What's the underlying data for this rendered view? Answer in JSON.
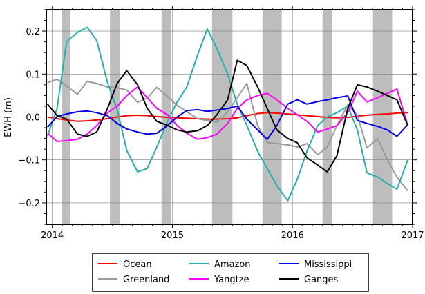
{
  "chart_data": {
    "type": "line",
    "title": "",
    "xlabel": "",
    "ylabel": "EWH (m)",
    "xlim": [
      2013.95,
      2017.0
    ],
    "ylim": [
      -0.25,
      0.25
    ],
    "x_ticks": [
      2014,
      2015,
      2016,
      2017
    ],
    "x_tick_labels": [
      "2014",
      "2015",
      "2016",
      "2017"
    ],
    "y_ticks": [
      -0.2,
      -0.1,
      0.0,
      0.1,
      0.2
    ],
    "y_tick_labels": [
      "−0.2",
      "−0.1",
      "0.0",
      "0.1",
      "0.2"
    ],
    "grid": true,
    "legend_position": "bottom",
    "shaded_intervals": [
      [
        2014.08,
        2014.15
      ],
      [
        2014.48,
        2014.56
      ],
      [
        2014.91,
        2014.99
      ],
      [
        2015.33,
        2015.5
      ],
      [
        2015.75,
        2015.91
      ],
      [
        2016.25,
        2016.33
      ],
      [
        2016.67,
        2016.83
      ]
    ],
    "series": [
      {
        "name": "Ocean",
        "color": "#ff0000",
        "x": [
          2013.96,
          2014.04,
          2014.12,
          2014.21,
          2014.29,
          2014.37,
          2014.46,
          2014.54,
          2014.62,
          2014.71,
          2014.79,
          2014.87,
          2014.96,
          2015.04,
          2015.12,
          2015.21,
          2015.29,
          2015.37,
          2015.46,
          2015.54,
          2015.62,
          2015.71,
          2015.79,
          2015.87,
          2015.96,
          2016.04,
          2016.12,
          2016.21,
          2016.29,
          2016.37,
          2016.46,
          2016.54,
          2016.62,
          2016.71,
          2016.79,
          2016.87,
          2016.96
        ],
        "y": [
          0.0,
          -0.004,
          -0.007,
          -0.01,
          -0.009,
          -0.007,
          -0.004,
          0.0,
          0.003,
          0.004,
          0.003,
          0.001,
          -0.001,
          -0.002,
          -0.003,
          -0.004,
          -0.005,
          -0.005,
          -0.004,
          -0.002,
          0.003,
          0.008,
          0.01,
          0.009,
          0.007,
          0.005,
          0.003,
          0.001,
          -0.001,
          -0.002,
          -0.001,
          0.002,
          0.004,
          0.006,
          0.007,
          0.009,
          0.01
        ]
      },
      {
        "name": "Greenland",
        "color": "#999999",
        "x": [
          2013.96,
          2014.04,
          2014.12,
          2014.21,
          2014.29,
          2014.37,
          2014.46,
          2014.54,
          2014.62,
          2014.71,
          2014.79,
          2014.87,
          2014.96,
          2015.04,
          2015.12,
          2015.21,
          2015.29,
          2015.37,
          2015.46,
          2015.54,
          2015.62,
          2015.71,
          2015.79,
          2015.87,
          2015.96,
          2016.04,
          2016.12,
          2016.21,
          2016.29,
          2016.37,
          2016.46,
          2016.54,
          2016.62,
          2016.71,
          2016.79,
          2016.87,
          2016.96
        ],
        "y": [
          0.08,
          0.088,
          0.072,
          0.053,
          0.083,
          0.078,
          0.07,
          0.068,
          0.063,
          0.034,
          0.044,
          0.069,
          0.048,
          0.027,
          0.012,
          -0.004,
          -0.008,
          -0.012,
          0.012,
          0.045,
          0.078,
          -0.02,
          -0.06,
          -0.062,
          -0.065,
          -0.07,
          -0.062,
          -0.088,
          -0.07,
          -0.02,
          0.028,
          0.005,
          -0.072,
          -0.05,
          -0.1,
          -0.14,
          -0.172
        ]
      },
      {
        "name": "Amazon",
        "color": "#20b2aa",
        "x": [
          2013.96,
          2014.04,
          2014.12,
          2014.21,
          2014.29,
          2014.37,
          2014.46,
          2014.54,
          2014.62,
          2014.71,
          2014.79,
          2014.87,
          2014.96,
          2015.04,
          2015.12,
          2015.21,
          2015.29,
          2015.37,
          2015.46,
          2015.54,
          2015.62,
          2015.71,
          2015.79,
          2015.87,
          2015.96,
          2016.04,
          2016.12,
          2016.21,
          2016.29,
          2016.37,
          2016.46,
          2016.54,
          2016.62,
          2016.71,
          2016.79,
          2016.87,
          2016.96
        ],
        "y": [
          -0.045,
          0.02,
          0.176,
          0.197,
          0.209,
          0.178,
          0.08,
          0.018,
          -0.078,
          -0.128,
          -0.12,
          -0.07,
          -0.01,
          0.035,
          0.07,
          0.145,
          0.205,
          0.16,
          0.1,
          0.03,
          -0.02,
          -0.08,
          -0.12,
          -0.16,
          -0.195,
          -0.145,
          -0.08,
          -0.02,
          0.0,
          0.01,
          0.025,
          -0.03,
          -0.13,
          -0.14,
          -0.155,
          -0.168,
          -0.1
        ]
      },
      {
        "name": "Yangtze",
        "color": "#ff00ff",
        "x": [
          2013.96,
          2014.04,
          2014.12,
          2014.21,
          2014.29,
          2014.37,
          2014.46,
          2014.54,
          2014.62,
          2014.71,
          2014.79,
          2014.87,
          2014.96,
          2015.04,
          2015.12,
          2015.21,
          2015.29,
          2015.37,
          2015.46,
          2015.54,
          2015.62,
          2015.71,
          2015.79,
          2015.87,
          2015.96,
          2016.04,
          2016.12,
          2016.21,
          2016.29,
          2016.37,
          2016.46,
          2016.54,
          2016.62,
          2016.71,
          2016.79,
          2016.87,
          2016.96
        ],
        "y": [
          -0.038,
          -0.057,
          -0.055,
          -0.052,
          -0.04,
          -0.02,
          0.01,
          0.025,
          0.05,
          0.07,
          0.045,
          0.02,
          0.005,
          -0.02,
          -0.038,
          -0.052,
          -0.048,
          -0.04,
          -0.015,
          0.02,
          0.04,
          0.05,
          0.055,
          0.04,
          0.02,
          0.005,
          -0.01,
          -0.035,
          -0.028,
          -0.02,
          0.01,
          0.06,
          0.035,
          0.045,
          0.055,
          0.065,
          -0.02
        ]
      },
      {
        "name": "Mississippi",
        "color": "#0000ee",
        "x": [
          2013.96,
          2014.04,
          2014.12,
          2014.21,
          2014.29,
          2014.37,
          2014.46,
          2014.54,
          2014.62,
          2014.71,
          2014.79,
          2014.87,
          2014.96,
          2015.04,
          2015.12,
          2015.21,
          2015.29,
          2015.37,
          2015.46,
          2015.54,
          2015.62,
          2015.71,
          2015.79,
          2015.87,
          2015.96,
          2016.04,
          2016.12,
          2016.21,
          2016.29,
          2016.37,
          2016.46,
          2016.54,
          2016.62,
          2016.71,
          2016.79,
          2016.87,
          2016.96
        ],
        "y": [
          -0.024,
          0.001,
          0.007,
          0.012,
          0.014,
          0.01,
          0.003,
          -0.015,
          -0.028,
          -0.035,
          -0.04,
          -0.038,
          -0.02,
          0.0,
          0.015,
          0.017,
          0.013,
          0.016,
          0.02,
          0.025,
          -0.005,
          -0.03,
          -0.052,
          -0.02,
          0.03,
          0.04,
          0.03,
          0.036,
          0.04,
          0.045,
          0.049,
          -0.008,
          -0.015,
          -0.022,
          -0.03,
          -0.045,
          -0.018
        ]
      },
      {
        "name": "Ganges",
        "color": "#000000",
        "x": [
          2013.96,
          2014.04,
          2014.12,
          2014.21,
          2014.29,
          2014.37,
          2014.46,
          2014.54,
          2014.62,
          2014.71,
          2014.79,
          2014.87,
          2014.96,
          2015.04,
          2015.12,
          2015.21,
          2015.29,
          2015.37,
          2015.46,
          2015.54,
          2015.62,
          2015.71,
          2015.79,
          2015.87,
          2015.96,
          2016.04,
          2016.12,
          2016.21,
          2016.29,
          2016.37,
          2016.46,
          2016.54,
          2016.62,
          2016.71,
          2016.79,
          2016.87,
          2016.96
        ],
        "y": [
          0.03,
          0.003,
          -0.005,
          -0.04,
          -0.045,
          -0.035,
          0.02,
          0.078,
          0.108,
          0.075,
          0.02,
          -0.01,
          -0.02,
          -0.03,
          -0.035,
          -0.032,
          -0.02,
          0.005,
          0.04,
          0.132,
          0.12,
          0.07,
          0.02,
          -0.03,
          -0.05,
          -0.06,
          -0.095,
          -0.112,
          -0.128,
          -0.09,
          0.02,
          0.075,
          0.07,
          0.06,
          0.05,
          0.04,
          -0.02
        ]
      }
    ]
  }
}
